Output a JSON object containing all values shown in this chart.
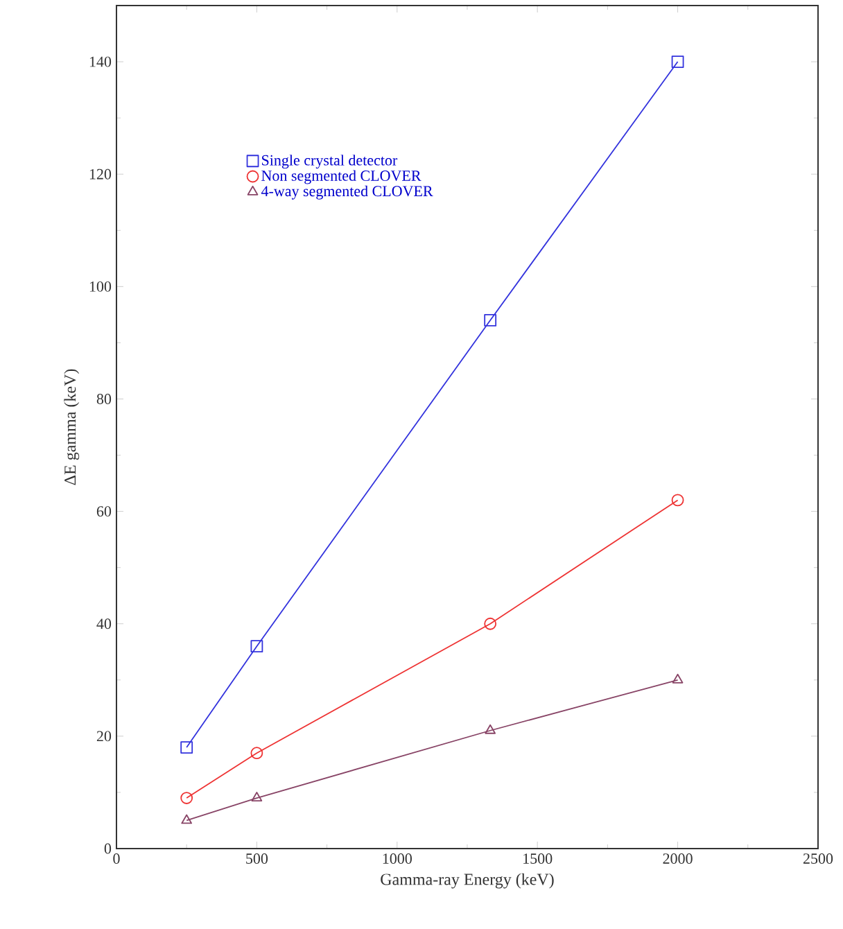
{
  "chart_data": {
    "type": "line",
    "xlabel": "Gamma-ray Energy  (keV)",
    "ylabel": "ΔE gamma    (keV)",
    "xlim": [
      0,
      2500
    ],
    "ylim": [
      0,
      150
    ],
    "xticks": [
      0,
      500,
      1000,
      1500,
      2000,
      2500
    ],
    "yticks": [
      0,
      20,
      40,
      60,
      80,
      100,
      120,
      140
    ],
    "legend": "top left",
    "grid": false,
    "series": [
      {
        "name": "Single crystal detector",
        "color": "#3333dd",
        "marker": "square",
        "x": [
          250,
          500,
          1332,
          2000
        ],
        "values": [
          18,
          36,
          94,
          140
        ]
      },
      {
        "name": "Non segmented CLOVER",
        "color": "#ee3333",
        "marker": "circle",
        "x": [
          250,
          500,
          1332,
          2000
        ],
        "values": [
          9,
          17,
          40,
          62
        ]
      },
      {
        "name": "4-way segmented CLOVER",
        "color": "#884466",
        "marker": "triangle",
        "x": [
          250,
          500,
          1332,
          2000
        ],
        "values": [
          5,
          9,
          21,
          30
        ]
      }
    ]
  }
}
